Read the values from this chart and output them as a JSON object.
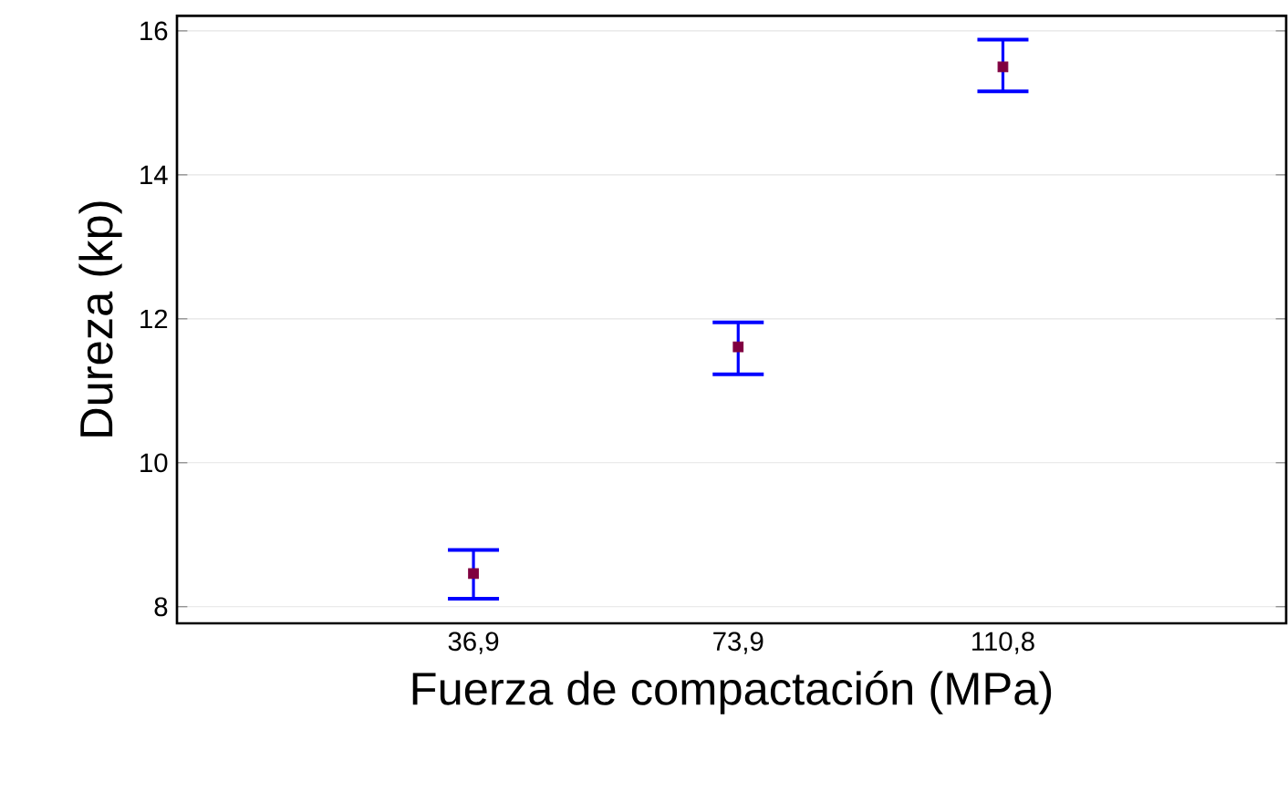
{
  "chart_data": {
    "type": "scatter",
    "xlabel": "Fuerza de compactación (MPa)",
    "ylabel": "Dureza (kp)",
    "categories": [
      "36,9",
      "73,9",
      "110,8"
    ],
    "values": [
      8.46,
      11.61,
      15.5
    ],
    "errors": [
      [
        8.11,
        8.79
      ],
      [
        11.23,
        11.95
      ],
      [
        15.16,
        15.88
      ]
    ],
    "color": "#800040",
    "marker": "square",
    "grid": "y",
    "ylim": [
      7.77,
      16.21
    ],
    "yticks": [
      8,
      10,
      12,
      14,
      16
    ]
  }
}
